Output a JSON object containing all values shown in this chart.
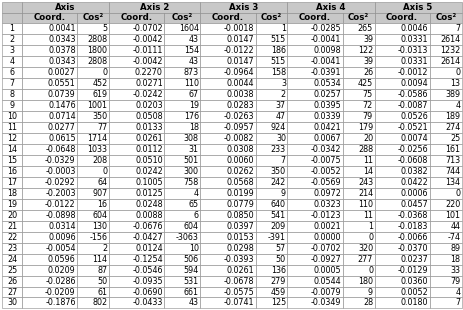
{
  "subheaders": [
    "",
    "Coord.",
    "Cos²",
    "Coord.",
    "Cos²",
    "Coord.",
    "Cos²",
    "Coord.",
    "Cos²",
    "Coord.",
    "Cos²"
  ],
  "axis_labels": [
    "Axis",
    "Axis 2",
    "Axis 3",
    "Axis 4",
    "Axis 5"
  ],
  "rows": [
    [
      "1",
      "0.0041",
      "5",
      "-0.0702",
      "1604",
      "-0.0018",
      "1",
      "-0.0285",
      "265",
      "0.0046",
      "7"
    ],
    [
      "2",
      "0.0343",
      "2808",
      "-0.0042",
      "43",
      "0.0147",
      "515",
      "-0.0041",
      "39",
      "0.0331",
      "2614"
    ],
    [
      "3",
      "0.0378",
      "1800",
      "-0.0111",
      "154",
      "-0.0122",
      "186",
      "0.0098",
      "122",
      "-0.0313",
      "1232"
    ],
    [
      "4",
      "0.0343",
      "2808",
      "-0.0042",
      "43",
      "0.0147",
      "515",
      "-0.0041",
      "39",
      "0.0331",
      "2614"
    ],
    [
      "6",
      "0.0027",
      "0",
      "0.2270",
      "873",
      "-0.0964",
      "158",
      "-0.0391",
      "26",
      "-0.0012",
      "0"
    ],
    [
      "7",
      "0.0551",
      "452",
      "0.0271",
      "110",
      "0.0044",
      "3",
      "0.0534",
      "425",
      "0.0094",
      "13"
    ],
    [
      "8",
      "0.0739",
      "619",
      "-0.0242",
      "67",
      "0.0038",
      "2",
      "0.0257",
      "75",
      "-0.0586",
      "389"
    ],
    [
      "9",
      "0.1476",
      "1001",
      "0.0203",
      "19",
      "0.0283",
      "37",
      "0.0395",
      "72",
      "-0.0087",
      "4"
    ],
    [
      "10",
      "0.0714",
      "350",
      "0.0508",
      "176",
      "-0.0263",
      "47",
      "0.0339",
      "79",
      "0.0526",
      "189"
    ],
    [
      "11",
      "0.0277",
      "77",
      "0.0133",
      "18",
      "-0.0957",
      "924",
      "0.0421",
      "179",
      "-0.0521",
      "274"
    ],
    [
      "12",
      "0.0615",
      "1714",
      "0.0261",
      "308",
      "-0.0082",
      "30",
      "0.0067",
      "20",
      "0.0074",
      "25"
    ],
    [
      "14",
      "-0.0648",
      "1033",
      "0.0112",
      "31",
      "0.0308",
      "233",
      "-0.0342",
      "288",
      "-0.0256",
      "161"
    ],
    [
      "15",
      "-0.0329",
      "208",
      "0.0510",
      "501",
      "0.0060",
      "7",
      "-0.0075",
      "11",
      "-0.0608",
      "713"
    ],
    [
      "16",
      "-0.0003",
      "0",
      "0.0242",
      "300",
      "0.0262",
      "350",
      "-0.0052",
      "14",
      "0.0382",
      "744"
    ],
    [
      "17",
      "-0.0292",
      "64",
      "0.1005",
      "758",
      "0.0568",
      "242",
      "-0.0569",
      "243",
      "0.0422",
      "134"
    ],
    [
      "18",
      "-0.2003",
      "907",
      "0.0125",
      "4",
      "0.0199",
      "9",
      "0.0972",
      "214",
      "0.0006",
      "0"
    ],
    [
      "19",
      "-0.0122",
      "16",
      "0.0248",
      "65",
      "0.0779",
      "640",
      "0.0323",
      "110",
      "0.0457",
      "220"
    ],
    [
      "20",
      "-0.0898",
      "604",
      "0.0088",
      "6",
      "0.0850",
      "541",
      "-0.0123",
      "11",
      "-0.0368",
      "101"
    ],
    [
      "21",
      "0.0314",
      "130",
      "-0.0676",
      "604",
      "0.0397",
      "209",
      "0.0021",
      "1",
      "-0.0183",
      "44"
    ],
    [
      "22",
      "0.0096",
      "-156",
      "-0.0427",
      "-3063",
      "0.0153",
      "-391",
      "0.0000",
      "0",
      "-0.0066",
      "-74"
    ],
    [
      "23",
      "-0.0054",
      "2",
      "0.0124",
      "10",
      "0.0298",
      "57",
      "-0.0702",
      "320",
      "-0.0370",
      "89"
    ],
    [
      "24",
      "0.0596",
      "114",
      "-0.1254",
      "506",
      "-0.0393",
      "50",
      "-0.0927",
      "277",
      "0.0237",
      "18"
    ],
    [
      "25",
      "0.0209",
      "87",
      "-0.0546",
      "594",
      "0.0261",
      "136",
      "0.0005",
      "0",
      "-0.0129",
      "33"
    ],
    [
      "26",
      "-0.0286",
      "50",
      "-0.0935",
      "531",
      "-0.0678",
      "279",
      "0.0544",
      "180",
      "0.0360",
      "79"
    ],
    [
      "27",
      "-0.0209",
      "61",
      "-0.0690",
      "661",
      "-0.0575",
      "459",
      "-0.0079",
      "9",
      "0.0052",
      "4"
    ],
    [
      "30",
      "-0.1876",
      "802",
      "-0.0433",
      "43",
      "-0.0741",
      "125",
      "-0.0349",
      "28",
      "0.0180",
      "7"
    ]
  ],
  "header_bg": "#c8c8c8",
  "row_bg": "#ffffff",
  "border_color": "#888888",
  "text_color": "#000000",
  "header_fontsize": 6.2,
  "cell_fontsize": 5.8,
  "col_props": [
    0.028,
    0.08,
    0.046,
    0.08,
    0.052,
    0.08,
    0.046,
    0.08,
    0.046,
    0.08,
    0.046
  ]
}
